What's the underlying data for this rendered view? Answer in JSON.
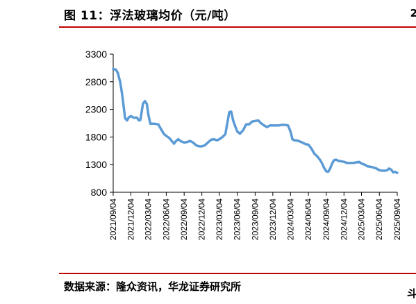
{
  "figure_title": "图 11：浮法玻璃均价（元/吨）",
  "source_note": "数据来源：隆众资讯，华龙证券研究所",
  "edge_marks": {
    "top": "2",
    "bottom": "斗"
  },
  "colors": {
    "line": "#5B9BD5",
    "rule": "#C00000",
    "axis": "#000000"
  },
  "chart_data": {
    "type": "line",
    "title": "",
    "xlabel": "",
    "ylabel": "",
    "ylim": [
      800,
      3300
    ],
    "yticks": [
      800,
      1300,
      1800,
      2300,
      2800,
      3300
    ],
    "grid": false,
    "legend": "none",
    "x_ticks": [
      "2021/09/04",
      "2021/12/04",
      "2022/03/04",
      "2022/06/04",
      "2022/09/04",
      "2022/12/04",
      "2023/03/04",
      "2023/06/04",
      "2023/09/04",
      "2023/12/04",
      "2024/03/04",
      "2024/06/04",
      "2024/09/04",
      "2024/12/04",
      "2025/03/04",
      "2025/06/04",
      "2025/09/04"
    ],
    "series": [
      {
        "name": "",
        "points": [
          [
            "2021/09/04",
            3030
          ],
          [
            "2021/09/18",
            3020
          ],
          [
            "2021/09/28",
            2960
          ],
          [
            "2021/10/10",
            2790
          ],
          [
            "2021/10/18",
            2620
          ],
          [
            "2021/10/26",
            2400
          ],
          [
            "2021/11/04",
            2140
          ],
          [
            "2021/11/14",
            2100
          ],
          [
            "2021/11/22",
            2150
          ],
          [
            "2021/12/04",
            2180
          ],
          [
            "2021/12/18",
            2150
          ],
          [
            "2022/01/04",
            2150
          ],
          [
            "2022/01/14",
            2100
          ],
          [
            "2022/01/22",
            2110
          ],
          [
            "2022/02/04",
            2400
          ],
          [
            "2022/02/14",
            2450
          ],
          [
            "2022/02/24",
            2400
          ],
          [
            "2022/03/04",
            2200
          ],
          [
            "2022/03/14",
            2040
          ],
          [
            "2022/04/04",
            2040
          ],
          [
            "2022/04/24",
            2030
          ],
          [
            "2022/05/10",
            1930
          ],
          [
            "2022/05/24",
            1850
          ],
          [
            "2022/06/04",
            1820
          ],
          [
            "2022/06/20",
            1780
          ],
          [
            "2022/07/04",
            1720
          ],
          [
            "2022/07/14",
            1680
          ],
          [
            "2022/07/22",
            1720
          ],
          [
            "2022/08/04",
            1760
          ],
          [
            "2022/08/20",
            1720
          ],
          [
            "2022/09/04",
            1700
          ],
          [
            "2022/09/20",
            1710
          ],
          [
            "2022/10/04",
            1730
          ],
          [
            "2022/10/20",
            1700
          ],
          [
            "2022/11/04",
            1650
          ],
          [
            "2022/11/20",
            1630
          ],
          [
            "2022/12/04",
            1630
          ],
          [
            "2022/12/20",
            1650
          ],
          [
            "2023/01/04",
            1700
          ],
          [
            "2023/01/20",
            1750
          ],
          [
            "2023/02/04",
            1760
          ],
          [
            "2023/02/20",
            1740
          ],
          [
            "2023/03/04",
            1760
          ],
          [
            "2023/03/20",
            1800
          ],
          [
            "2023/04/04",
            1850
          ],
          [
            "2023/04/14",
            2050
          ],
          [
            "2023/04/24",
            2250
          ],
          [
            "2023/05/04",
            2260
          ],
          [
            "2023/05/14",
            2100
          ],
          [
            "2023/05/24",
            2000
          ],
          [
            "2023/06/04",
            1900
          ],
          [
            "2023/06/18",
            1860
          ],
          [
            "2023/07/04",
            1920
          ],
          [
            "2023/07/20",
            2030
          ],
          [
            "2023/08/04",
            2030
          ],
          [
            "2023/08/20",
            2080
          ],
          [
            "2023/09/04",
            2090
          ],
          [
            "2023/09/20",
            2100
          ],
          [
            "2023/10/04",
            2050
          ],
          [
            "2023/10/20",
            2010
          ],
          [
            "2023/11/04",
            1980
          ],
          [
            "2023/11/20",
            2010
          ],
          [
            "2023/12/04",
            2010
          ],
          [
            "2023/12/20",
            2010
          ],
          [
            "2024/01/04",
            2010
          ],
          [
            "2024/01/20",
            2020
          ],
          [
            "2024/02/04",
            2020
          ],
          [
            "2024/02/20",
            2010
          ],
          [
            "2024/03/04",
            1900
          ],
          [
            "2024/03/14",
            1760
          ],
          [
            "2024/03/24",
            1740
          ],
          [
            "2024/04/04",
            1740
          ],
          [
            "2024/04/20",
            1720
          ],
          [
            "2024/05/04",
            1700
          ],
          [
            "2024/05/20",
            1670
          ],
          [
            "2024/06/04",
            1660
          ],
          [
            "2024/06/20",
            1590
          ],
          [
            "2024/07/04",
            1500
          ],
          [
            "2024/07/20",
            1450
          ],
          [
            "2024/08/04",
            1380
          ],
          [
            "2024/08/14",
            1320
          ],
          [
            "2024/08/24",
            1240
          ],
          [
            "2024/09/04",
            1180
          ],
          [
            "2024/09/14",
            1170
          ],
          [
            "2024/09/24",
            1230
          ],
          [
            "2024/10/04",
            1320
          ],
          [
            "2024/10/14",
            1380
          ],
          [
            "2024/10/24",
            1390
          ],
          [
            "2024/11/04",
            1370
          ],
          [
            "2024/11/20",
            1360
          ],
          [
            "2024/12/04",
            1350
          ],
          [
            "2024/12/20",
            1330
          ],
          [
            "2025/01/04",
            1330
          ],
          [
            "2025/01/20",
            1330
          ],
          [
            "2025/02/04",
            1340
          ],
          [
            "2025/02/20",
            1350
          ],
          [
            "2025/03/04",
            1320
          ],
          [
            "2025/03/20",
            1300
          ],
          [
            "2025/04/04",
            1270
          ],
          [
            "2025/04/20",
            1260
          ],
          [
            "2025/05/04",
            1250
          ],
          [
            "2025/05/20",
            1230
          ],
          [
            "2025/06/04",
            1200
          ],
          [
            "2025/06/20",
            1190
          ],
          [
            "2025/07/04",
            1190
          ],
          [
            "2025/07/14",
            1200
          ],
          [
            "2025/07/24",
            1230
          ],
          [
            "2025/08/04",
            1210
          ],
          [
            "2025/08/14",
            1160
          ],
          [
            "2025/08/24",
            1170
          ],
          [
            "2025/09/04",
            1150
          ]
        ]
      }
    ]
  }
}
